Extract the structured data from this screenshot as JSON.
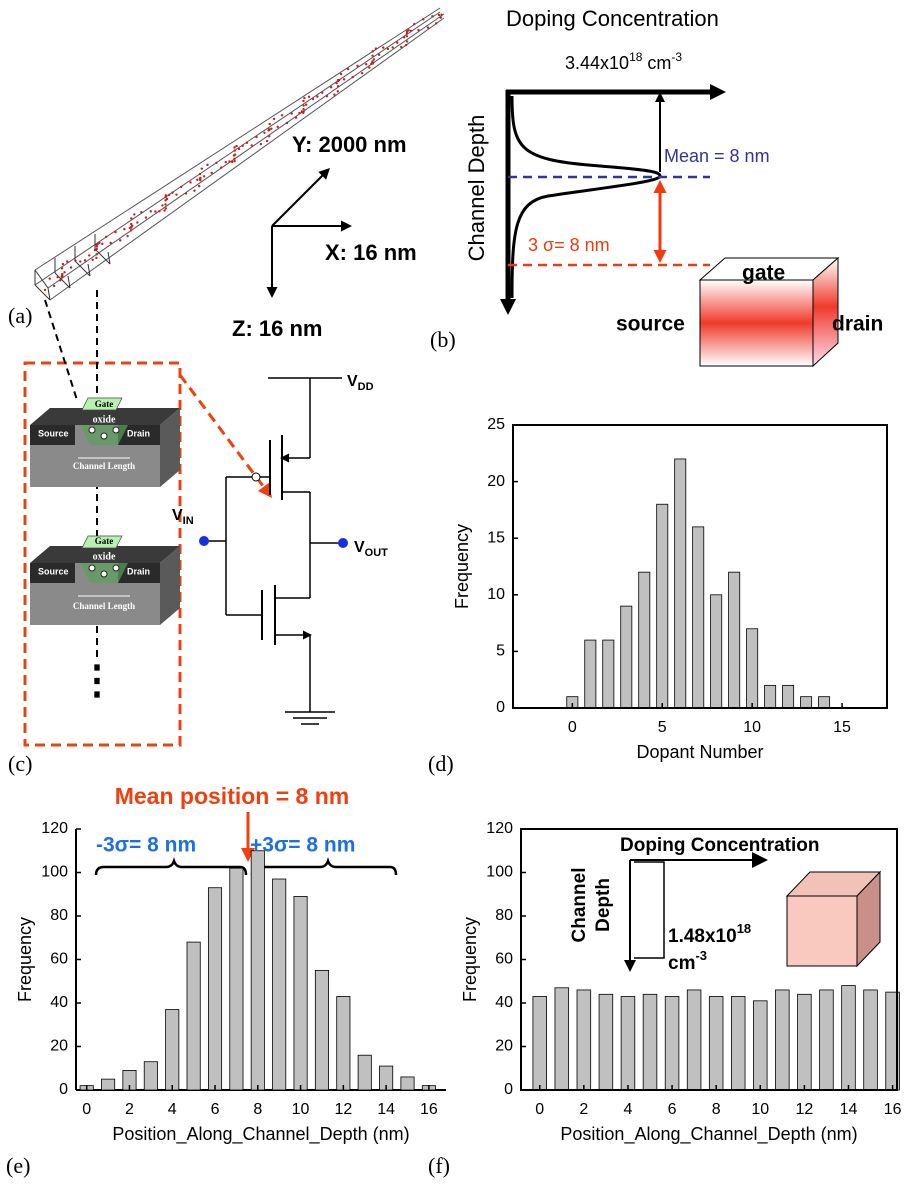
{
  "panels": {
    "a": "(a)",
    "b": "(b)",
    "c": "(c)",
    "d": "(d)",
    "e": "(e)",
    "f": "(f)"
  },
  "panel_a": {
    "y_axis": "Y: 2000 nm",
    "x_axis": "X: 16 nm",
    "z_axis": "Z: 16 nm"
  },
  "panel_b": {
    "title": "Doping Concentration",
    "peak": {
      "base": "3.44x10",
      "exp": "18",
      "unit": " cm",
      "unit_exp": "-3"
    },
    "axis": "Channel Depth",
    "mean": "Mean = 8 nm",
    "sigma": "3 σ= 8 nm",
    "gate": "gate",
    "source": "source",
    "drain": "drain"
  },
  "panel_c": {
    "devices": [
      {
        "gate": "Gate",
        "oxide": "oxide",
        "source": "Source",
        "drain": "Drain",
        "channel": "Channel Length"
      },
      {
        "gate": "Gate",
        "oxide": "oxide",
        "source": "Source",
        "drain": "Drain",
        "channel": "Channel Length"
      }
    ],
    "more": "⋮",
    "vdd": {
      "base": "V",
      "sub": "DD"
    },
    "vin": {
      "base": "V",
      "sub": "IN"
    },
    "vout": {
      "base": "V",
      "sub": "OUT"
    }
  },
  "chart_data": [
    {
      "type": "bar",
      "x_label": "Dopant Number",
      "y_label": "Frequency",
      "x": [
        0,
        1,
        2,
        3,
        4,
        5,
        6,
        7,
        8,
        9,
        10,
        11,
        12,
        13,
        14
      ],
      "values": [
        1,
        6,
        6,
        9,
        12,
        18,
        22,
        16,
        10,
        12,
        7,
        2,
        2,
        1,
        1
      ],
      "color": "#c0c0c0",
      "xlim": [
        -3.3,
        17.5
      ],
      "ylim": [
        0,
        25
      ],
      "xticks": [
        0,
        5,
        10,
        15
      ],
      "yticks": [
        0,
        5,
        10,
        15,
        20,
        25
      ],
      "frame": true
    },
    {
      "type": "bar",
      "x_label": "Position_Along_Channel_Depth (nm)",
      "y_label": "Frequency",
      "x": [
        0,
        1,
        2,
        3,
        4,
        5,
        6,
        7,
        8,
        9,
        10,
        11,
        12,
        13,
        14,
        15,
        16
      ],
      "values": [
        2,
        5,
        9,
        13,
        37,
        68,
        93,
        102,
        110,
        97,
        89,
        55,
        43,
        16,
        11,
        6,
        2
      ],
      "color": "#c0c0c0",
      "xlim": [
        -0.5,
        16.8
      ],
      "ylim": [
        0,
        120
      ],
      "xticks": [
        0,
        2,
        4,
        6,
        8,
        10,
        12,
        14,
        16
      ],
      "yticks": [
        0,
        20,
        40,
        60,
        80,
        100,
        120
      ],
      "frame": false,
      "annotations": {
        "mean": "Mean position = 8 nm",
        "minus": "-3σ= 8 nm",
        "plus": "+3σ= 8 nm"
      }
    },
    {
      "type": "bar",
      "x_label": "Position_Along_Channel_Depth (nm)",
      "y_label": "Frequency",
      "x": [
        0,
        1,
        2,
        3,
        4,
        5,
        6,
        7,
        8,
        9,
        10,
        11,
        12,
        13,
        14,
        15,
        16
      ],
      "values": [
        43,
        47,
        46,
        44,
        43,
        44,
        43,
        46,
        43,
        43,
        41,
        46,
        44,
        46,
        48,
        46,
        45
      ],
      "color": "#c0c0c0",
      "xlim": [
        -0.85,
        16.2
      ],
      "ylim": [
        0,
        120
      ],
      "xticks": [
        0,
        2,
        4,
        6,
        8,
        10,
        12,
        14,
        16
      ],
      "yticks": [
        0,
        20,
        40,
        60,
        80,
        100,
        120
      ],
      "frame": true,
      "annotations": {
        "doping": "Doping Concentration",
        "depth_1": "Channel",
        "depth_2": "Depth",
        "conc": {
          "base": "1.48x10",
          "exp": "18",
          "unit": "cm",
          "unit_exp": "-3"
        }
      }
    }
  ]
}
